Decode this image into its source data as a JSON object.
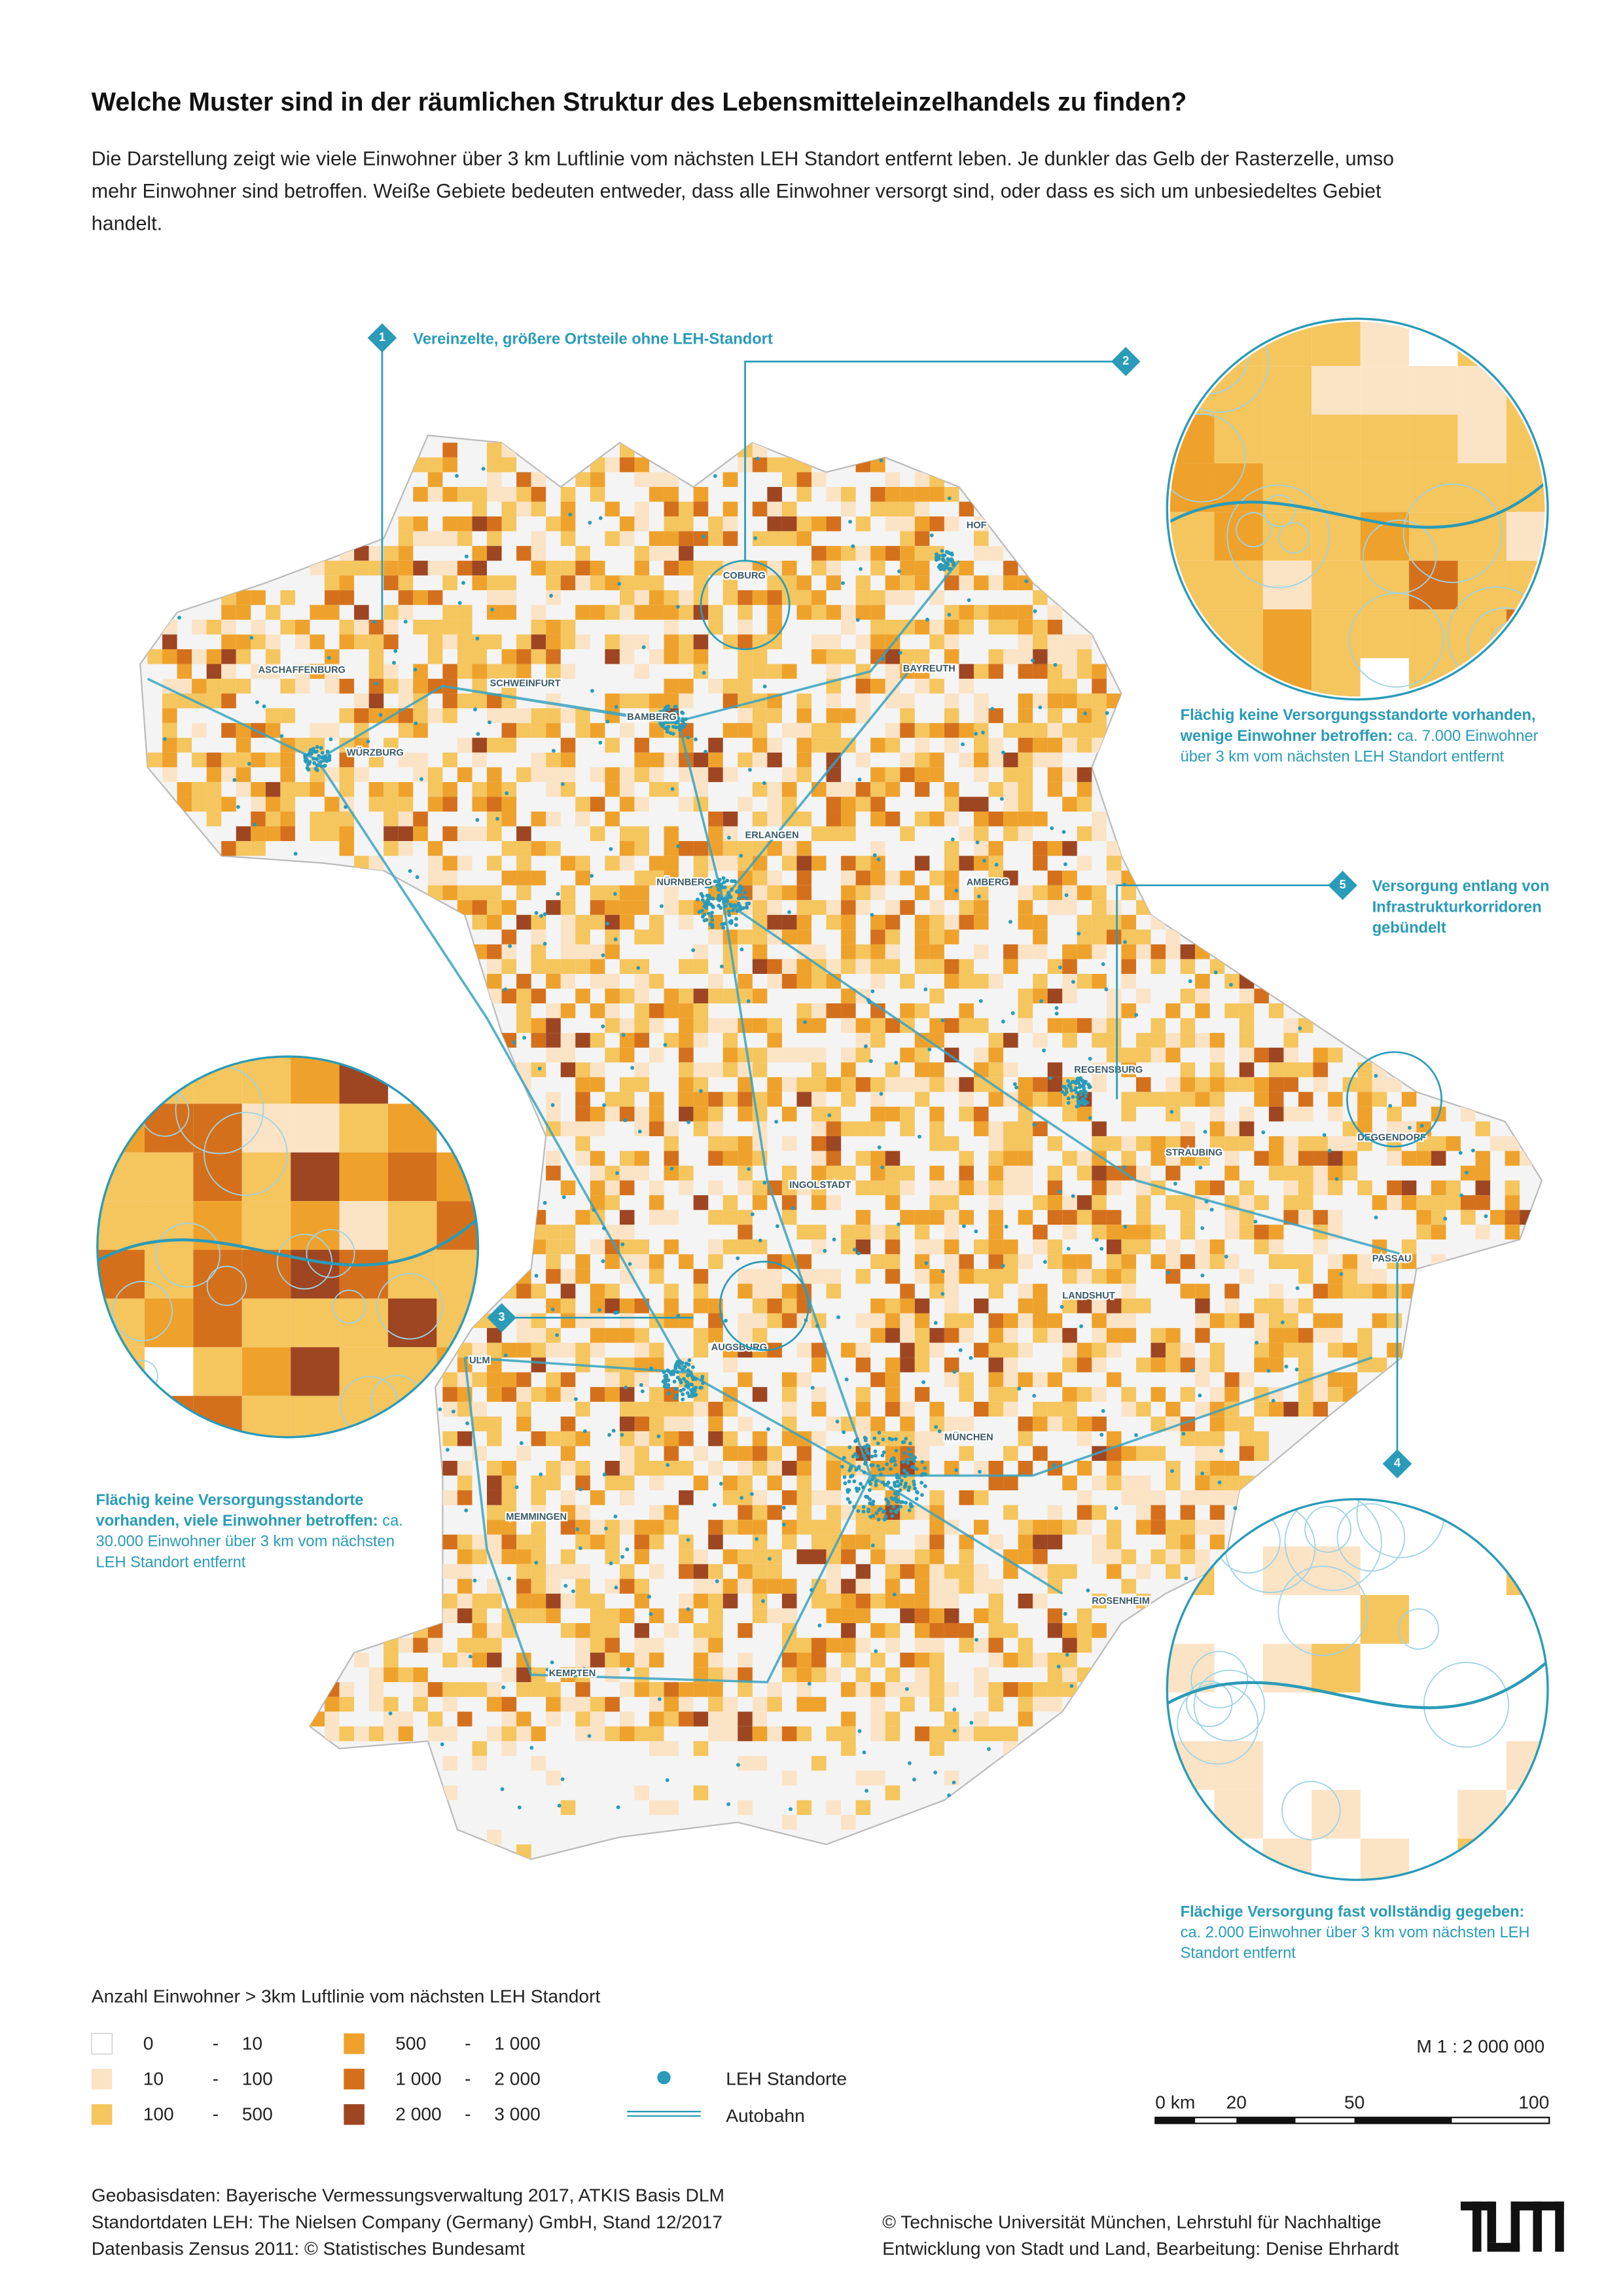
{
  "title": "Welche Muster sind in der räumlichen Struktur des Lebensmitteleinzelhandels zu finden?",
  "intro": [
    "Die Darstellung zeigt wie viele Einwohner über 3 km Luftlinie vom nächsten LEH Standort entfernt leben. Je dunkler das Gelb der Rasterzelle, umso",
    "mehr Einwohner sind betroffen. Weiße Gebiete bedeuten entweder, dass alle Einwohner versorgt sind, oder dass es sich um unbesiedeltes Gebiet",
    "handelt."
  ],
  "cities": [
    "ASCHAFFENBURG",
    "SCHWEINFURT",
    "WÜRZBURG",
    "BAMBERG",
    "COBURG",
    "HOF",
    "BAYREUTH",
    "ERLANGEN",
    "NÜRNBERG",
    "AMBERG",
    "REGENSBURG",
    "STRAUBING",
    "DEGGENDORF",
    "PASSAU",
    "INGOLSTADT",
    "LANDSHUT",
    "AUGSBURG",
    "ULM",
    "MÜNCHEN",
    "MEMMINGEN",
    "ROSENHEIM",
    "KEMPTEN"
  ],
  "annotations": [
    {
      "number": "1",
      "bold": [
        "Vereinzelte, größere Ortsteile ohne LEH-Standort"
      ],
      "regular": []
    },
    {
      "number": "2",
      "bold": [
        "Flächig keine Versorgungsstandorte vorhanden,",
        "wenige Einwohner betroffen:"
      ],
      "regular": [
        "ca. 7.000 Einwohner",
        "über 3 km vom nächsten LEH Standort entfernt"
      ]
    },
    {
      "number": "3",
      "bold": [
        "Flächig keine Versorgungsstandorte",
        "vorhanden, viele Einwohner betroffen:"
      ],
      "regular": [
        "ca.",
        "30.000 Einwohner über 3 km vom nächsten",
        "LEH Standort entfernt"
      ]
    },
    {
      "number": "4",
      "bold": [
        "Flächige Versorgung fast vollständig gegeben:"
      ],
      "regular": [
        "ca. 2.000 Einwohner über 3 km vom nächsten LEH",
        "Standort entfernt"
      ]
    },
    {
      "number": "5",
      "bold": [
        "Versorgung entlang von",
        "Infrastrukturkorridoren",
        "gebündelt"
      ],
      "regular": []
    }
  ],
  "legend": {
    "title": "Anzahl Einwohner > 3km Luftlinie vom nächsten LEH Standort",
    "classes": [
      {
        "from": "0",
        "to": "10",
        "color": "#ffffff"
      },
      {
        "from": "10",
        "to": "100",
        "color": "#fbe3c6"
      },
      {
        "from": "100",
        "to": "500",
        "color": "#f5c55e"
      },
      {
        "from": "500",
        "to": "1 000",
        "color": "#eea22c"
      },
      {
        "from": "1 000",
        "to": "2 000",
        "color": "#d4701c"
      },
      {
        "from": "2 000",
        "to": "3 000",
        "color": "#9e4622"
      }
    ],
    "stores": "LEH Standorte",
    "highway": "Autobahn",
    "feature_color": "#2a9bb8"
  },
  "scale": {
    "ratio": "M 1 : 2 000 000",
    "labels": [
      "0 km",
      "20",
      "50",
      "100"
    ]
  },
  "footer": {
    "left": [
      "Geobasisdaten: Bayerische Vermessungsverwaltung 2017, ATKIS Basis DLM",
      "Standortdaten LEH: The Nielsen Company (Germany) GmbH, Stand 12/2017",
      "Datenbasis Zensus 2011: © Statistisches Bundesamt"
    ],
    "right": [
      "© Technische Universität München, Lehrstuhl für Nachhaltige",
      "Entwicklung von Stadt und Land, Bearbeitung: Denise Ehrhardt"
    ]
  }
}
